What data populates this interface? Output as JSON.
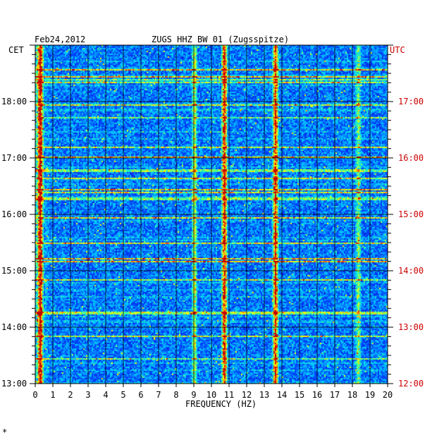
{
  "chart_data": {
    "type": "heatmap",
    "title": "ZUGS HHZ BW 01 (Zugsspitze)",
    "date_label": "Feb24,2012",
    "left_axis_title": "CET",
    "right_axis_title": "UTC",
    "xlabel": "FREQUENCY (HZ)",
    "x_ticks": [
      0,
      1,
      2,
      3,
      4,
      5,
      6,
      7,
      8,
      9,
      10,
      11,
      12,
      13,
      14,
      15,
      16,
      17,
      18,
      19,
      20
    ],
    "xlim": [
      0,
      20
    ],
    "y_time_range_cet": [
      "13:00",
      "19:00"
    ],
    "cet_ticks": [
      "18:00",
      "17:00",
      "16:00",
      "15:00",
      "14:00",
      "13:00"
    ],
    "utc_ticks": [
      "17:00",
      "16:00",
      "15:00",
      "14:00",
      "13:00",
      "12:00"
    ],
    "colormap": [
      "#00004a",
      "#0000c8",
      "#0050ff",
      "#00d0ff",
      "#40ff90",
      "#ffff00",
      "#ff6000",
      "#c00000"
    ],
    "persistent_bands_hz": [
      {
        "freq": 0.25,
        "intensity": 0.85
      },
      {
        "freq": 9.0,
        "intensity": 0.45
      },
      {
        "freq": 10.7,
        "intensity": 0.85
      },
      {
        "freq": 13.6,
        "intensity": 0.8
      },
      {
        "freq": 18.3,
        "intensity": 0.35
      }
    ],
    "grid": true,
    "footer_mark": "*"
  }
}
